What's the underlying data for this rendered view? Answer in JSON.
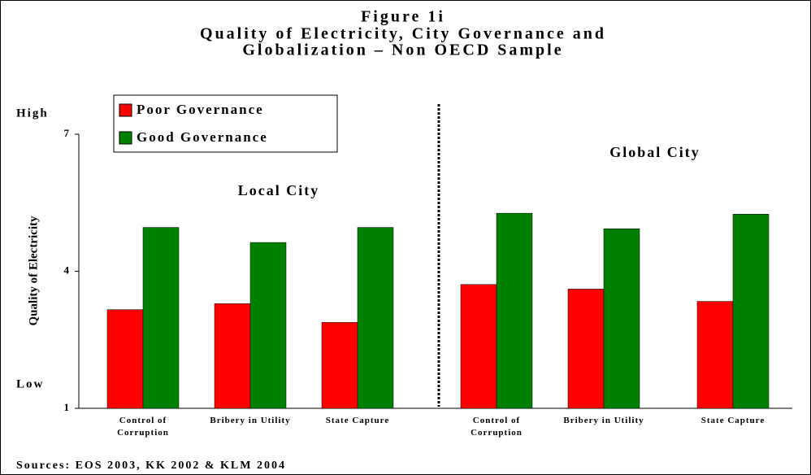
{
  "chart_data": {
    "type": "bar",
    "title": [
      "Figure 1i",
      "Quality of Electricity, City Governance and",
      "Globalization – Non OECD Sample"
    ],
    "y_label": "Quality of Electricity",
    "annotations": {
      "high": "High",
      "low": "Low",
      "source": "Sources: EOS 2003, KK 2002 & KLM 2004"
    },
    "groups": [
      "Local City",
      "Global City"
    ],
    "categories": [
      "Control of Corruption",
      "Bribery in Utility",
      "State Capture",
      "Control of Corruption",
      "Bribery in Utility",
      "State Capture"
    ],
    "series": [
      {
        "name": "Poor Governance",
        "color": "#ff0000",
        "values": [
          3.16,
          3.29,
          2.88,
          3.71,
          3.61,
          3.34
        ]
      },
      {
        "name": "Good Governance",
        "color": "#008000",
        "values": [
          4.96,
          4.63,
          4.96,
          5.27,
          4.93,
          5.25
        ]
      }
    ],
    "ylim": [
      1,
      7
    ],
    "yticks": [
      1,
      4,
      7
    ],
    "grid": false,
    "legend": "top-left"
  }
}
